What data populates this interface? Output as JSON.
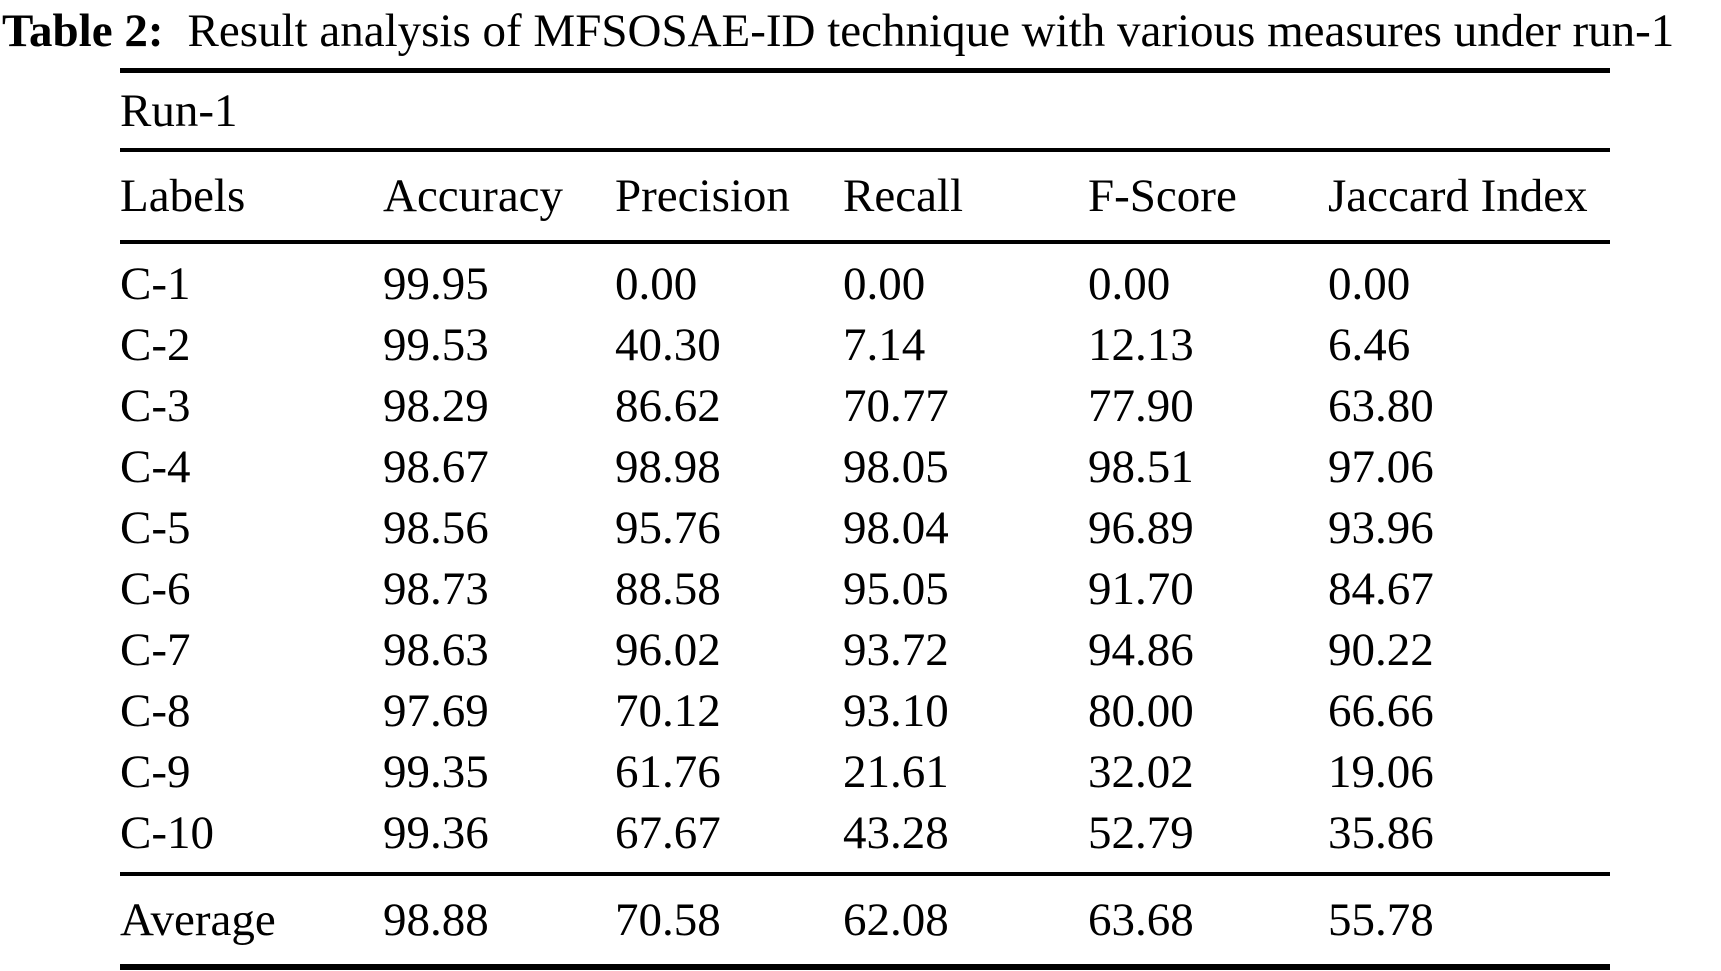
{
  "caption": {
    "label": "Table 2:",
    "text": "Result analysis of MFSOSAE-ID technique with various measures under run-1"
  },
  "table": {
    "group_header": "Run-1",
    "columns": [
      "Labels",
      "Accuracy",
      "Precision",
      "Recall",
      "F-Score",
      "Jaccard Index"
    ],
    "rows": [
      {
        "label": "C-1",
        "values": [
          "99.95",
          "0.00",
          "0.00",
          "0.00",
          "0.00"
        ]
      },
      {
        "label": "C-2",
        "values": [
          "99.53",
          "40.30",
          "7.14",
          "12.13",
          "6.46"
        ]
      },
      {
        "label": "C-3",
        "values": [
          "98.29",
          "86.62",
          "70.77",
          "77.90",
          "63.80"
        ]
      },
      {
        "label": "C-4",
        "values": [
          "98.67",
          "98.98",
          "98.05",
          "98.51",
          "97.06"
        ]
      },
      {
        "label": "C-5",
        "values": [
          "98.56",
          "95.76",
          "98.04",
          "96.89",
          "93.96"
        ]
      },
      {
        "label": "C-6",
        "values": [
          "98.73",
          "88.58",
          "95.05",
          "91.70",
          "84.67"
        ]
      },
      {
        "label": "C-7",
        "values": [
          "98.63",
          "96.02",
          "93.72",
          "94.86",
          "90.22"
        ]
      },
      {
        "label": "C-8",
        "values": [
          "97.69",
          "70.12",
          "93.10",
          "80.00",
          "66.66"
        ]
      },
      {
        "label": "C-9",
        "values": [
          "99.35",
          "61.76",
          "21.61",
          "32.02",
          "19.06"
        ]
      },
      {
        "label": "C-10",
        "values": [
          "99.36",
          "67.67",
          "43.28",
          "52.79",
          "35.86"
        ]
      }
    ],
    "average": {
      "label": "Average",
      "values": [
        "98.88",
        "70.58",
        "62.08",
        "63.68",
        "55.78"
      ]
    }
  },
  "colors": {
    "text": "#000000",
    "background": "#ffffff",
    "rule": "#000000"
  }
}
